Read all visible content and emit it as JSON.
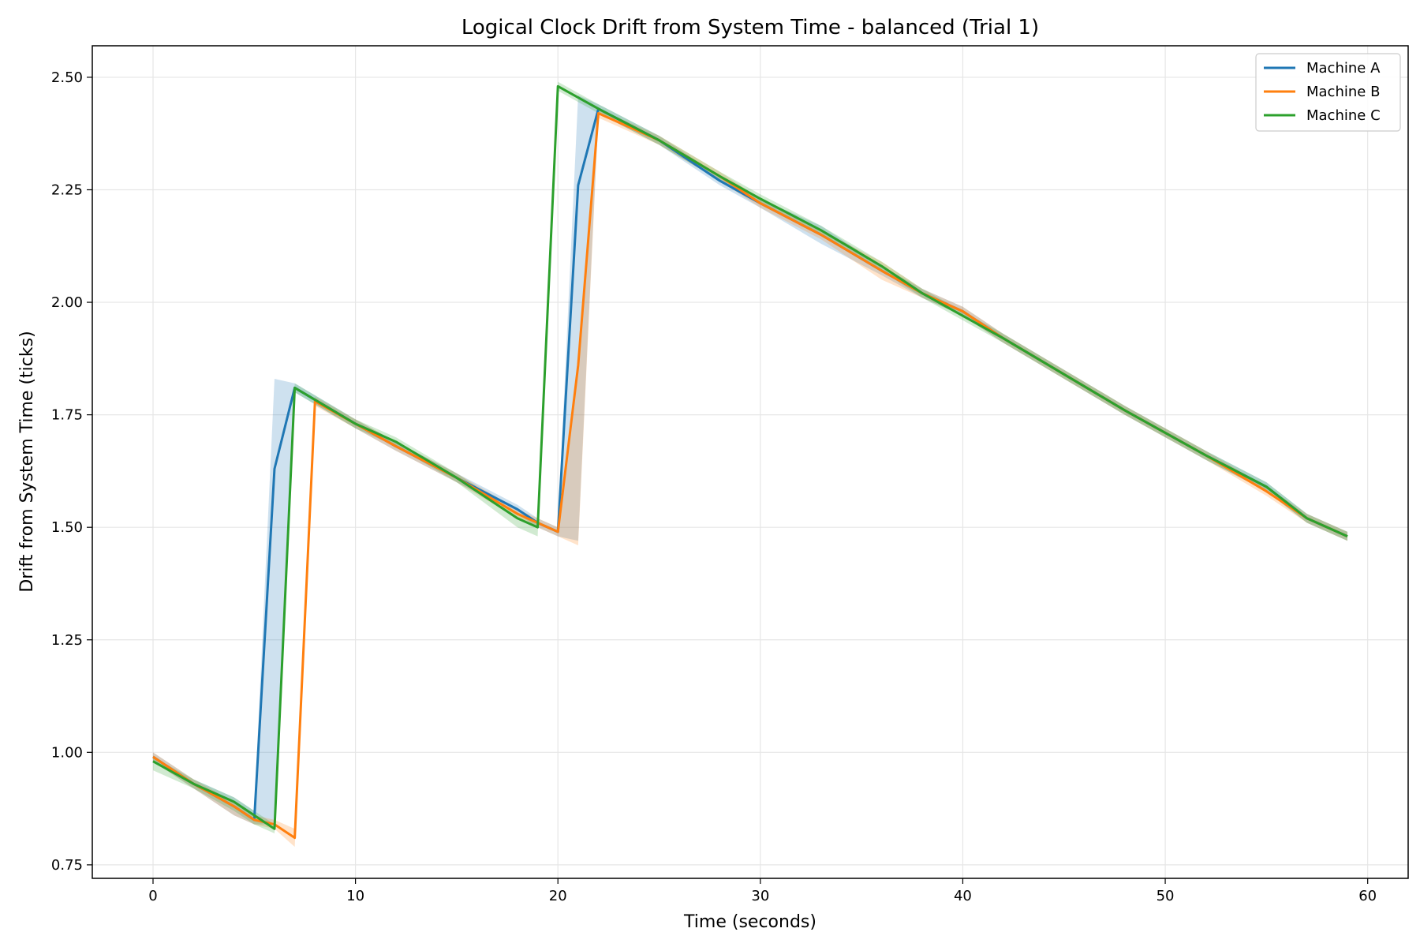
{
  "chart_data": {
    "type": "line",
    "title": "Logical Clock Drift from System Time - balanced (Trial 1)",
    "xlabel": "Time (seconds)",
    "ylabel": "Drift from System Time (ticks)",
    "xlim": [
      -3,
      62
    ],
    "ylim": [
      0.72,
      2.57
    ],
    "xticks": [
      0,
      10,
      20,
      30,
      40,
      50,
      60
    ],
    "yticks": [
      "0.75",
      "1.00",
      "1.25",
      "1.50",
      "1.75",
      "2.00",
      "2.25",
      "2.50"
    ],
    "grid": true,
    "legend_position": "top-right",
    "series": [
      {
        "name": "Machine A",
        "color": "#1f77b4",
        "points": [
          [
            0,
            0.99
          ],
          [
            2,
            0.93
          ],
          [
            4,
            0.88
          ],
          [
            5,
            0.85
          ],
          [
            6,
            1.63
          ],
          [
            7,
            1.81
          ],
          [
            10,
            1.73
          ],
          [
            12,
            1.68
          ],
          [
            15,
            1.61
          ],
          [
            18,
            1.54
          ],
          [
            19,
            1.51
          ],
          [
            20,
            1.49
          ],
          [
            21,
            2.26
          ],
          [
            22,
            2.43
          ],
          [
            25,
            2.36
          ],
          [
            28,
            2.27
          ],
          [
            30,
            2.22
          ],
          [
            33,
            2.15
          ],
          [
            36,
            2.07
          ],
          [
            38,
            2.02
          ],
          [
            40,
            1.98
          ],
          [
            42,
            1.92
          ],
          [
            45,
            1.84
          ],
          [
            48,
            1.76
          ],
          [
            50,
            1.71
          ],
          [
            52,
            1.66
          ],
          [
            55,
            1.59
          ],
          [
            57,
            1.52
          ],
          [
            59,
            1.48
          ]
        ],
        "band": [
          [
            0,
            1.0,
            0.98
          ],
          [
            2,
            0.94,
            0.92
          ],
          [
            4,
            0.9,
            0.86
          ],
          [
            5,
            0.87,
            0.84
          ],
          [
            6,
            1.83,
            0.84
          ],
          [
            7,
            1.82,
            1.8
          ],
          [
            10,
            1.74,
            1.72
          ],
          [
            12,
            1.69,
            1.67
          ],
          [
            15,
            1.62,
            1.6
          ],
          [
            18,
            1.55,
            1.53
          ],
          [
            19,
            1.52,
            1.5
          ],
          [
            20,
            1.5,
            1.48
          ],
          [
            21,
            2.46,
            1.47
          ],
          [
            22,
            2.44,
            2.42
          ],
          [
            25,
            2.37,
            2.35
          ],
          [
            28,
            2.28,
            2.26
          ],
          [
            30,
            2.23,
            2.21
          ],
          [
            33,
            2.17,
            2.13
          ],
          [
            36,
            2.08,
            2.06
          ],
          [
            38,
            2.03,
            2.01
          ],
          [
            40,
            1.99,
            1.97
          ],
          [
            42,
            1.93,
            1.91
          ],
          [
            45,
            1.85,
            1.83
          ],
          [
            48,
            1.77,
            1.75
          ],
          [
            50,
            1.72,
            1.7
          ],
          [
            52,
            1.67,
            1.65
          ],
          [
            55,
            1.6,
            1.58
          ],
          [
            57,
            1.53,
            1.51
          ],
          [
            59,
            1.49,
            1.47
          ]
        ]
      },
      {
        "name": "Machine B",
        "color": "#ff7f0e",
        "points": [
          [
            0,
            0.99
          ],
          [
            2,
            0.93
          ],
          [
            4,
            0.88
          ],
          [
            5,
            0.85
          ],
          [
            6,
            0.84
          ],
          [
            7,
            0.81
          ],
          [
            8,
            1.78
          ],
          [
            10,
            1.73
          ],
          [
            12,
            1.68
          ],
          [
            15,
            1.61
          ],
          [
            18,
            1.53
          ],
          [
            20,
            1.49
          ],
          [
            21,
            1.86
          ],
          [
            22,
            2.42
          ],
          [
            25,
            2.36
          ],
          [
            28,
            2.28
          ],
          [
            30,
            2.22
          ],
          [
            33,
            2.15
          ],
          [
            36,
            2.07
          ],
          [
            38,
            2.02
          ],
          [
            40,
            1.98
          ],
          [
            42,
            1.92
          ],
          [
            45,
            1.84
          ],
          [
            48,
            1.76
          ],
          [
            50,
            1.71
          ],
          [
            52,
            1.66
          ],
          [
            55,
            1.58
          ],
          [
            57,
            1.52
          ],
          [
            59,
            1.48
          ]
        ],
        "band": [
          [
            0,
            1.0,
            0.98
          ],
          [
            2,
            0.94,
            0.92
          ],
          [
            4,
            0.89,
            0.86
          ],
          [
            5,
            0.86,
            0.84
          ],
          [
            6,
            0.85,
            0.83
          ],
          [
            7,
            0.83,
            0.79
          ],
          [
            8,
            1.79,
            1.77
          ],
          [
            10,
            1.74,
            1.72
          ],
          [
            12,
            1.69,
            1.67
          ],
          [
            15,
            1.62,
            1.6
          ],
          [
            18,
            1.54,
            1.52
          ],
          [
            20,
            1.5,
            1.48
          ],
          [
            21,
            1.87,
            1.46
          ],
          [
            22,
            2.43,
            2.41
          ],
          [
            25,
            2.37,
            2.35
          ],
          [
            28,
            2.29,
            2.27
          ],
          [
            30,
            2.23,
            2.21
          ],
          [
            33,
            2.16,
            2.14
          ],
          [
            36,
            2.09,
            2.05
          ],
          [
            38,
            2.03,
            2.01
          ],
          [
            40,
            1.99,
            1.97
          ],
          [
            42,
            1.93,
            1.91
          ],
          [
            45,
            1.85,
            1.83
          ],
          [
            48,
            1.77,
            1.75
          ],
          [
            50,
            1.72,
            1.7
          ],
          [
            52,
            1.67,
            1.65
          ],
          [
            55,
            1.59,
            1.57
          ],
          [
            57,
            1.53,
            1.51
          ],
          [
            59,
            1.49,
            1.47
          ]
        ]
      },
      {
        "name": "Machine C",
        "color": "#2ca02c",
        "points": [
          [
            0,
            0.98
          ],
          [
            2,
            0.93
          ],
          [
            4,
            0.89
          ],
          [
            5,
            0.86
          ],
          [
            6,
            0.83
          ],
          [
            7,
            1.81
          ],
          [
            10,
            1.73
          ],
          [
            12,
            1.69
          ],
          [
            15,
            1.61
          ],
          [
            18,
            1.52
          ],
          [
            19,
            1.5
          ],
          [
            20,
            2.48
          ],
          [
            22,
            2.43
          ],
          [
            25,
            2.36
          ],
          [
            28,
            2.28
          ],
          [
            30,
            2.23
          ],
          [
            33,
            2.16
          ],
          [
            36,
            2.08
          ],
          [
            38,
            2.02
          ],
          [
            40,
            1.97
          ],
          [
            42,
            1.92
          ],
          [
            45,
            1.84
          ],
          [
            48,
            1.76
          ],
          [
            50,
            1.71
          ],
          [
            52,
            1.66
          ],
          [
            55,
            1.59
          ],
          [
            57,
            1.52
          ],
          [
            59,
            1.48
          ]
        ],
        "band": [
          [
            0,
            0.99,
            0.96
          ],
          [
            2,
            0.94,
            0.92
          ],
          [
            4,
            0.9,
            0.87
          ],
          [
            5,
            0.87,
            0.84
          ],
          [
            6,
            0.84,
            0.82
          ],
          [
            7,
            1.82,
            1.8
          ],
          [
            10,
            1.74,
            1.72
          ],
          [
            12,
            1.7,
            1.68
          ],
          [
            15,
            1.62,
            1.6
          ],
          [
            18,
            1.53,
            1.5
          ],
          [
            19,
            1.51,
            1.48
          ],
          [
            20,
            2.49,
            2.47
          ],
          [
            22,
            2.44,
            2.42
          ],
          [
            25,
            2.37,
            2.35
          ],
          [
            28,
            2.29,
            2.27
          ],
          [
            30,
            2.24,
            2.22
          ],
          [
            33,
            2.17,
            2.15
          ],
          [
            36,
            2.09,
            2.07
          ],
          [
            38,
            2.03,
            2.01
          ],
          [
            40,
            1.98,
            1.96
          ],
          [
            42,
            1.93,
            1.91
          ],
          [
            45,
            1.85,
            1.83
          ],
          [
            48,
            1.77,
            1.75
          ],
          [
            50,
            1.72,
            1.7
          ],
          [
            52,
            1.67,
            1.65
          ],
          [
            55,
            1.6,
            1.58
          ],
          [
            57,
            1.53,
            1.51
          ],
          [
            59,
            1.49,
            1.47
          ]
        ]
      }
    ]
  }
}
